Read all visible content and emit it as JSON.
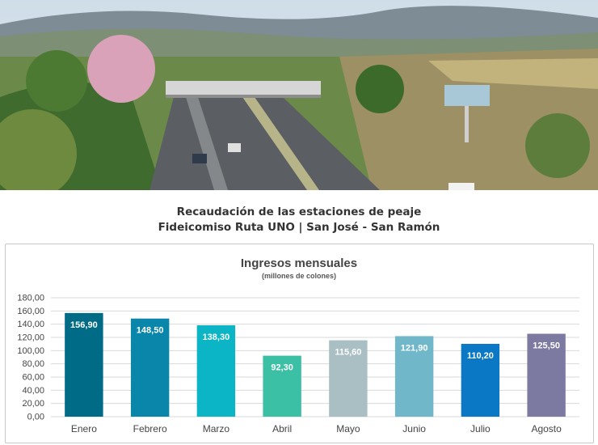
{
  "photo": {
    "description_icon": "toll-plaza-photo"
  },
  "header": {
    "line1": "Recaudación de las estaciones de peaje",
    "line2": "Fideicomiso Ruta UNO | San José - San Ramón"
  },
  "chart_data": {
    "type": "bar",
    "title": "Ingresos mensuales",
    "subtitle": "(millones de colones)",
    "xlabel": "",
    "ylabel": "",
    "ylim": [
      0,
      180
    ],
    "ytick_labels": [
      "0,00",
      "20,00",
      "40,00",
      "60,00",
      "80,00",
      "100,00",
      "120,00",
      "140,00",
      "160,00",
      "180,00"
    ],
    "grid": true,
    "legend": "none",
    "categories": [
      "Enero",
      "Febrero",
      "Marzo",
      "Abril",
      "Mayo",
      "Junio",
      "Julio",
      "Agosto"
    ],
    "values": [
      156.9,
      148.5,
      138.3,
      92.3,
      115.6,
      121.9,
      110.2,
      125.5
    ],
    "data_labels": [
      "156,90",
      "148,50",
      "138,30",
      "92,30",
      "115,60",
      "121,90",
      "110,20",
      "125,50"
    ],
    "colors": [
      "#006b86",
      "#0a86aa",
      "#0bb5c6",
      "#3cc0a5",
      "#a9bfc3",
      "#6fb7c9",
      "#0a78c4",
      "#7d7aa2"
    ]
  }
}
